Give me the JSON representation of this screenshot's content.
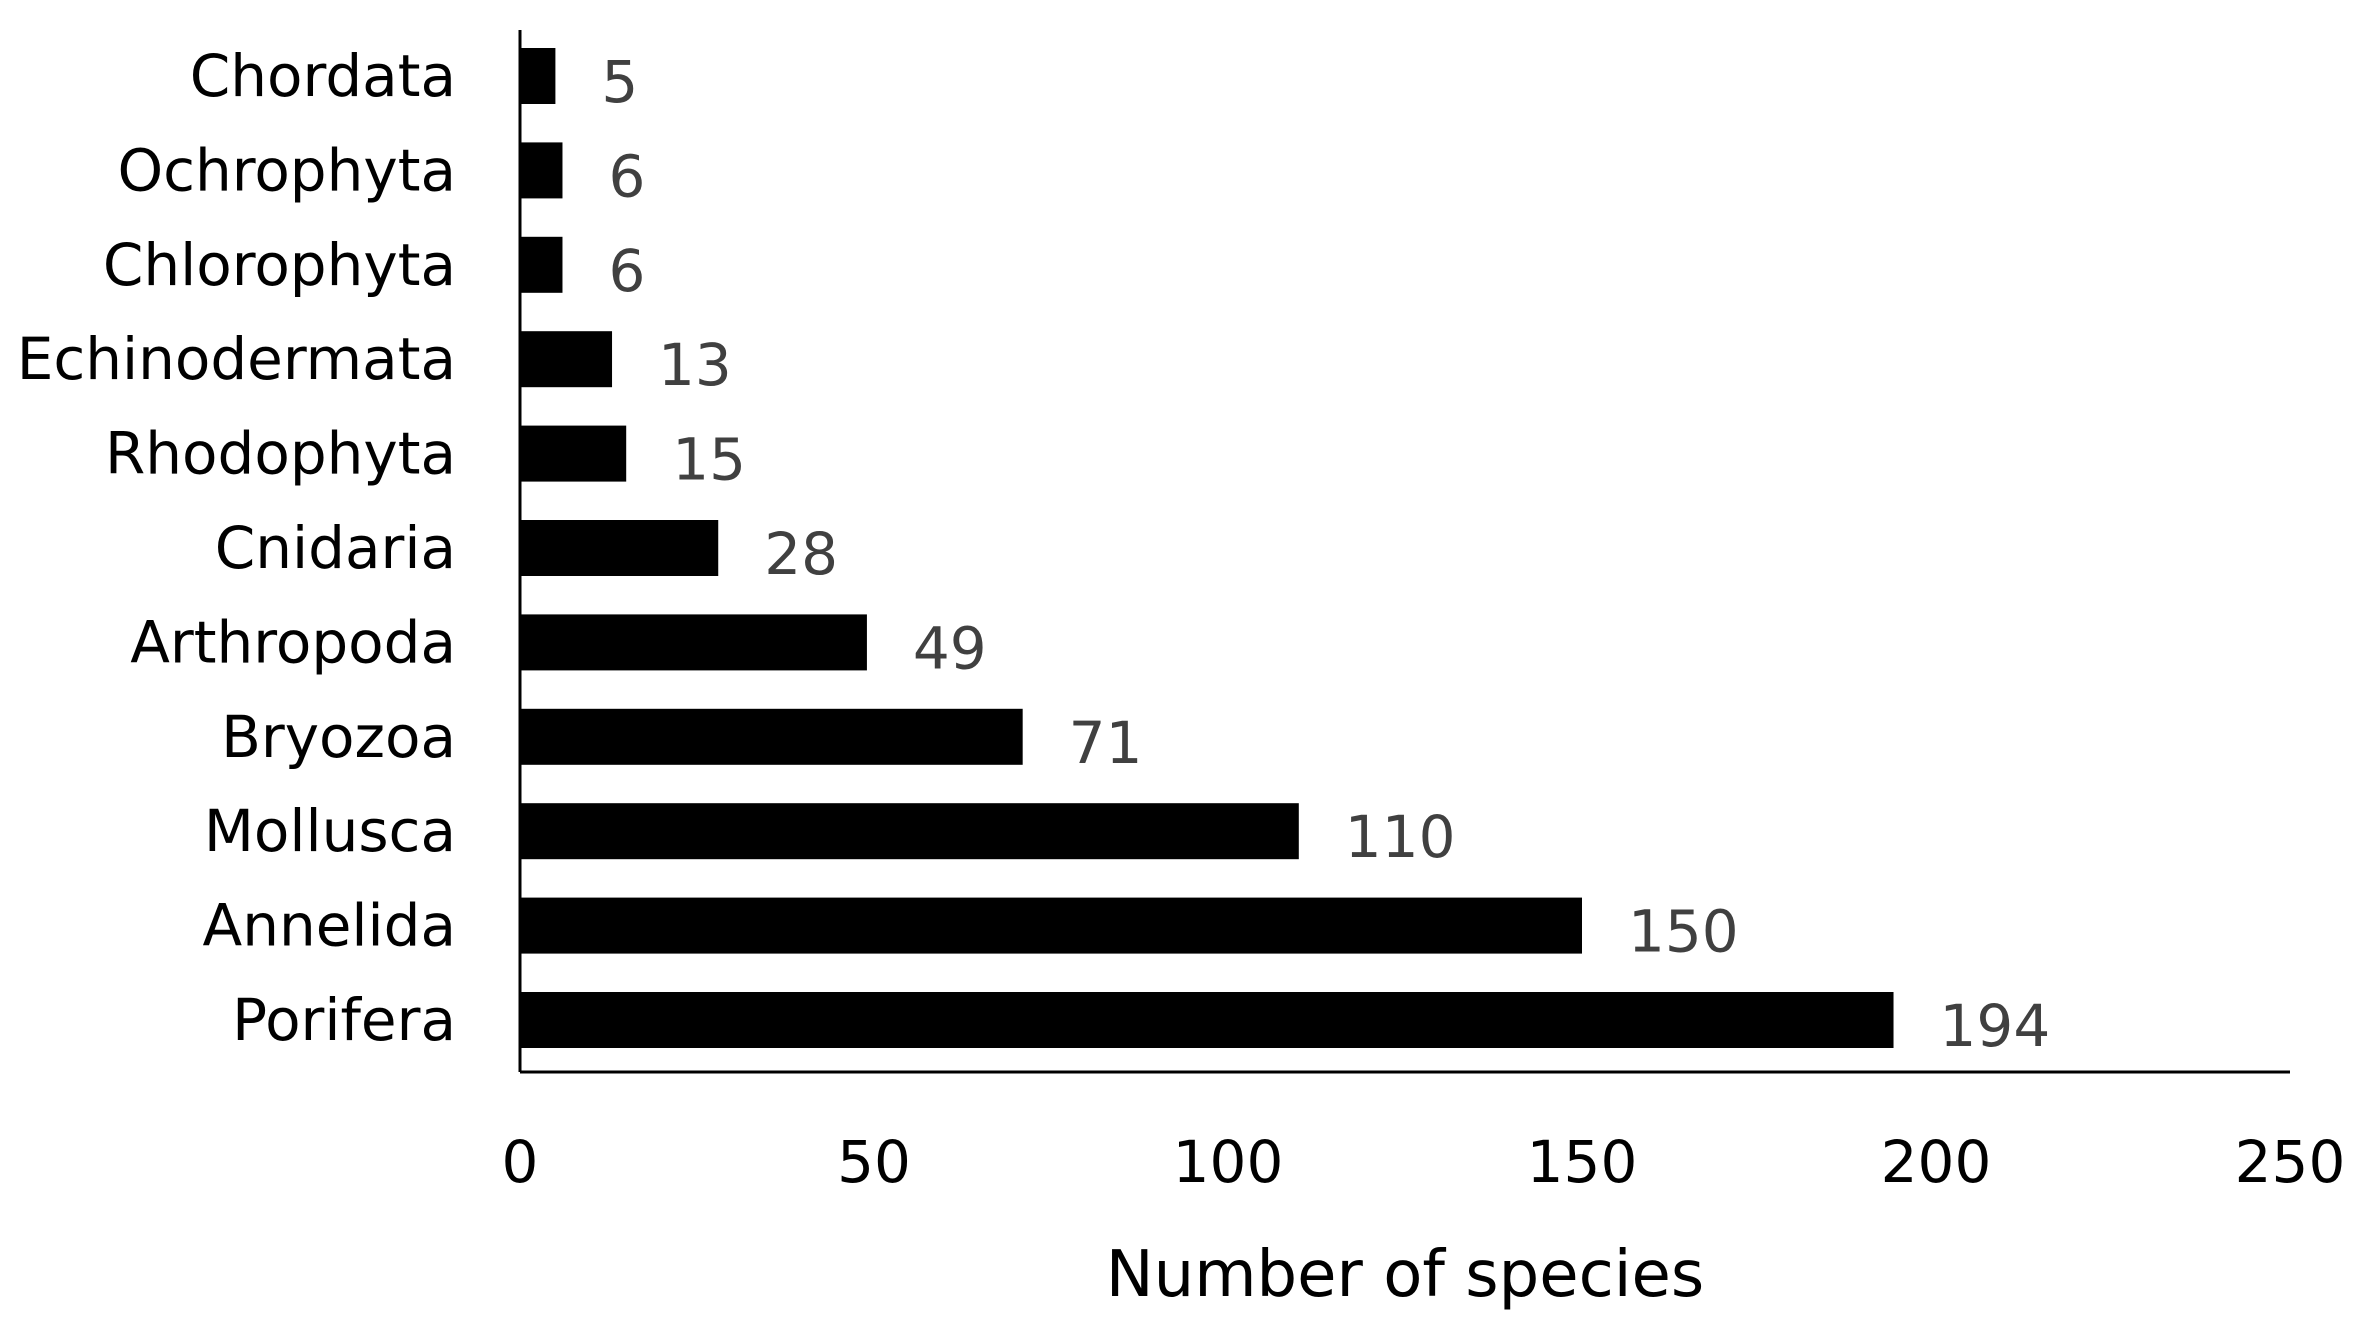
{
  "chart_data": {
    "type": "bar",
    "orientation": "horizontal",
    "categories": [
      "Chordata",
      "Ochrophyta",
      "Chlorophyta",
      "Echinodermata",
      "Rhodophyta",
      "Cnidaria",
      "Arthropoda",
      "Bryozoa",
      "Mollusca",
      "Annelida",
      "Porifera"
    ],
    "values": [
      5,
      6,
      6,
      13,
      15,
      28,
      49,
      71,
      110,
      150,
      194
    ],
    "value_labels": [
      "5",
      "6",
      "6",
      "13",
      "15",
      "28",
      "49",
      "71",
      "110",
      "150",
      "194"
    ],
    "xlabel": "Number of species",
    "ylabel": "",
    "xlim": [
      0,
      250
    ],
    "xticks": [
      0,
      50,
      100,
      150,
      200,
      250
    ],
    "xtick_labels": [
      "0",
      "50",
      "100",
      "150",
      "200",
      "250"
    ],
    "grid": false,
    "legend": "none",
    "bar_color": "#000000",
    "value_label_color": "#404040"
  }
}
